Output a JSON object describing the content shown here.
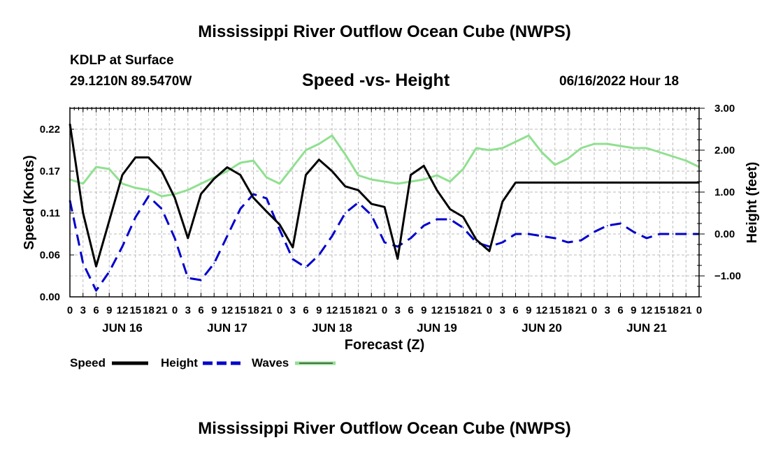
{
  "header": {
    "title": "Mississippi River Outflow Ocean Cube (NWPS)",
    "station": "KDLP at Surface",
    "coords": "29.1210N  89.5470W",
    "subtitle": "Speed -vs- Height",
    "issued": "06/16/2022 Hour 18"
  },
  "footer": {
    "title": "Mississippi River Outflow Ocean Cube (NWPS)"
  },
  "colors": {
    "speed": "#000000",
    "height": "#0000cc",
    "waves": "#90e090",
    "grid": "#bbbbbb"
  },
  "chart_data": {
    "type": "line",
    "xlabel": "Forecast (Z)",
    "ylabel_left": "Speed (Knots)",
    "ylabel_right": "Height (feet)",
    "x_range_hours": [
      0,
      144
    ],
    "x_tick_labels": [
      "0",
      "3",
      "6",
      "9",
      "12",
      "15",
      "18",
      "21",
      "0",
      "3",
      "6",
      "9",
      "12",
      "15",
      "18",
      "21",
      "0",
      "3",
      "6",
      "9",
      "12",
      "15",
      "18",
      "21",
      "0",
      "3",
      "6",
      "9",
      "12",
      "15",
      "18",
      "21",
      "0",
      "3",
      "6",
      "9",
      "12",
      "15",
      "18",
      "21",
      "0",
      "3",
      "6",
      "9",
      "12",
      "15",
      "18",
      "21",
      "0"
    ],
    "day_labels": [
      "JUN 16",
      "JUN 17",
      "JUN 18",
      "JUN 19",
      "JUN 20",
      "JUN 21"
    ],
    "left_axis": {
      "min": 0.0,
      "max": 0.2475,
      "ticks": [
        0.0,
        0.055,
        0.11,
        0.165,
        0.22
      ],
      "tick_labels": [
        "0.00",
        "0.06",
        "0.11",
        "0.17",
        "0.22"
      ]
    },
    "right_axis": {
      "min": -1.5,
      "max": 3.0,
      "ticks": [
        -1.0,
        0.0,
        1.0,
        2.0,
        3.0
      ],
      "tick_labels": [
        "−1.00",
        "0.00",
        "1.00",
        "2.00",
        "3.00"
      ]
    },
    "legend": [
      "Speed",
      "Height",
      "Waves"
    ],
    "series": [
      {
        "name": "Speed",
        "axis": "left",
        "style": "solid",
        "x": [
          0,
          3,
          6,
          9,
          12,
          15,
          18,
          21,
          24,
          27,
          30,
          33,
          36,
          39,
          42,
          45,
          48,
          51,
          54,
          57,
          60,
          63,
          66,
          69,
          72,
          75,
          78,
          81,
          84,
          87,
          90,
          93,
          96,
          99,
          102,
          105,
          108,
          111,
          114,
          117,
          120,
          123,
          126,
          129,
          132,
          135,
          138,
          141,
          144
        ],
        "y": [
          0.227,
          0.11,
          0.04,
          0.1,
          0.16,
          0.183,
          0.183,
          0.165,
          0.13,
          0.077,
          0.135,
          0.155,
          0.17,
          0.16,
          0.13,
          0.112,
          0.095,
          0.065,
          0.16,
          0.18,
          0.165,
          0.145,
          0.14,
          0.122,
          0.118,
          0.05,
          0.16,
          0.172,
          0.14,
          0.115,
          0.105,
          0.075,
          0.06,
          0.125,
          0.15,
          0.15,
          0.15,
          0.15,
          0.15,
          0.15,
          0.15,
          0.15,
          0.15,
          0.15,
          0.15,
          0.15,
          0.15,
          0.15,
          0.15
        ]
      },
      {
        "name": "Height",
        "axis": "right",
        "style": "dashed",
        "x": [
          0,
          3,
          6,
          9,
          12,
          15,
          18,
          21,
          24,
          27,
          30,
          33,
          36,
          39,
          42,
          45,
          48,
          51,
          54,
          57,
          60,
          63,
          66,
          69,
          72,
          75,
          78,
          81,
          84,
          87,
          90,
          93,
          96,
          99,
          102,
          105,
          108,
          111,
          114,
          117,
          120,
          123,
          126,
          129,
          132,
          135,
          138,
          141,
          144
        ],
        "y": [
          0.8,
          -0.7,
          -1.35,
          -0.9,
          -0.3,
          0.4,
          0.9,
          0.6,
          -0.1,
          -1.05,
          -1.1,
          -0.7,
          -0.05,
          0.6,
          0.95,
          0.85,
          0.1,
          -0.6,
          -0.8,
          -0.5,
          -0.05,
          0.5,
          0.75,
          0.45,
          -0.2,
          -0.3,
          -0.1,
          0.2,
          0.35,
          0.35,
          0.15,
          -0.2,
          -0.3,
          -0.2,
          0.0,
          0.0,
          -0.05,
          -0.1,
          -0.2,
          -0.15,
          0.05,
          0.2,
          0.25,
          0.05,
          -0.1,
          0.0,
          0.0,
          0.0,
          0.0
        ]
      },
      {
        "name": "Waves",
        "axis": "right",
        "style": "solid",
        "x": [
          0,
          3,
          6,
          9,
          12,
          15,
          18,
          21,
          24,
          27,
          30,
          33,
          36,
          39,
          42,
          45,
          48,
          51,
          54,
          57,
          60,
          63,
          66,
          69,
          72,
          75,
          78,
          81,
          84,
          87,
          90,
          93,
          96,
          99,
          102,
          105,
          108,
          111,
          114,
          117,
          120,
          123,
          126,
          129,
          132,
          135,
          138,
          141,
          144
        ],
        "y": [
          1.3,
          1.2,
          1.6,
          1.55,
          1.2,
          1.1,
          1.05,
          0.9,
          0.95,
          1.05,
          1.2,
          1.35,
          1.5,
          1.7,
          1.75,
          1.35,
          1.2,
          1.6,
          2.0,
          2.15,
          2.35,
          1.9,
          1.4,
          1.3,
          1.25,
          1.2,
          1.25,
          1.3,
          1.4,
          1.25,
          1.55,
          2.05,
          2.0,
          2.05,
          2.2,
          2.35,
          1.95,
          1.65,
          1.8,
          2.05,
          2.15,
          2.15,
          2.1,
          2.05,
          2.05,
          1.95,
          1.85,
          1.75,
          1.6
        ]
      }
    ]
  }
}
